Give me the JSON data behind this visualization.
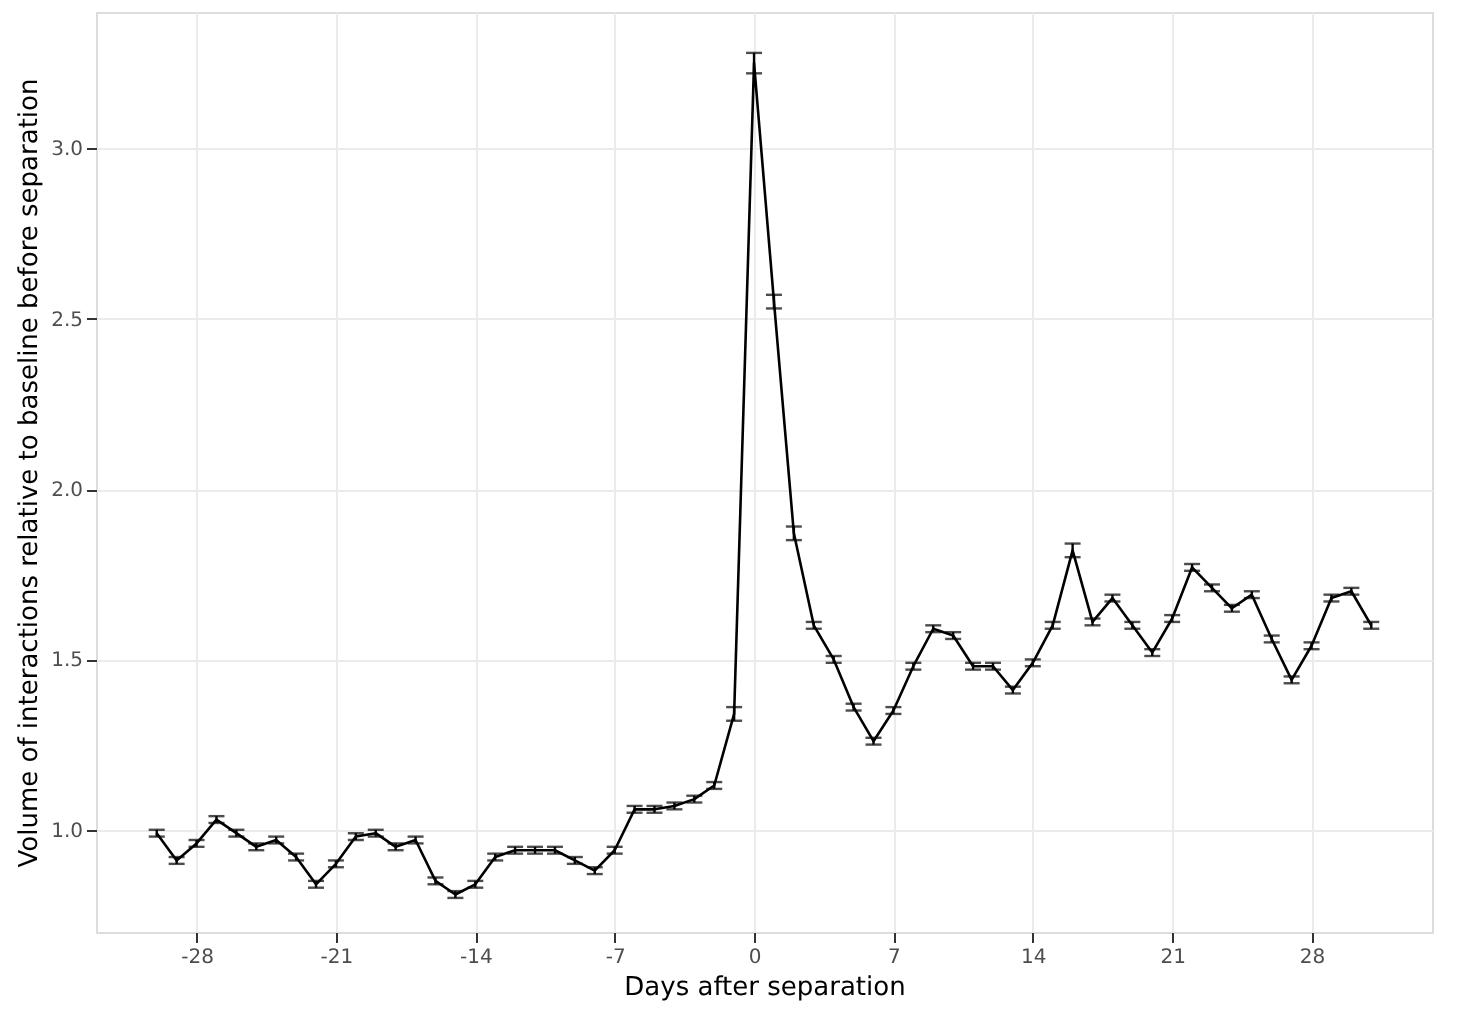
{
  "chart_data": {
    "type": "line",
    "xlabel": "Days after separation",
    "ylabel": "Volume of interactions relative to baseline before separation",
    "x": [
      -30,
      -29,
      -28,
      -27,
      -26,
      -25,
      -24,
      -23,
      -22,
      -21,
      -20,
      -19,
      -18,
      -17,
      -16,
      -15,
      -14,
      -13,
      -12,
      -11,
      -10,
      -9,
      -8,
      -7,
      -6,
      -5,
      -4,
      -3,
      -2,
      -1,
      0,
      1,
      2,
      3,
      4,
      5,
      6,
      7,
      8,
      9,
      10,
      11,
      12,
      13,
      14,
      15,
      16,
      17,
      18,
      19,
      20,
      21,
      22,
      23,
      24,
      25,
      26,
      27,
      28,
      29,
      30,
      31
    ],
    "series": [
      {
        "color": "#000000",
        "values": [
          0.99,
          0.91,
          0.96,
          1.03,
          0.99,
          0.95,
          0.97,
          0.92,
          0.84,
          0.9,
          0.98,
          0.99,
          0.95,
          0.97,
          0.85,
          0.81,
          0.84,
          0.92,
          0.94,
          0.94,
          0.94,
          0.91,
          0.88,
          0.94,
          1.06,
          1.06,
          1.07,
          1.09,
          1.13,
          1.34,
          3.25,
          2.55,
          1.87,
          1.6,
          1.5,
          1.36,
          1.26,
          1.35,
          1.48,
          1.59,
          1.57,
          1.48,
          1.48,
          1.41,
          1.49,
          1.6,
          1.82,
          1.61,
          1.68,
          1.6,
          1.52,
          1.62,
          1.77,
          1.71,
          1.65,
          1.69,
          1.56,
          1.44,
          1.54,
          1.68,
          1.7,
          1.6
        ],
        "errors": [
          0.01,
          0.01,
          0.01,
          0.01,
          0.01,
          0.01,
          0.01,
          0.01,
          0.01,
          0.01,
          0.01,
          0.01,
          0.01,
          0.01,
          0.01,
          0.01,
          0.01,
          0.01,
          0.01,
          0.01,
          0.01,
          0.01,
          0.01,
          0.01,
          0.01,
          0.01,
          0.01,
          0.01,
          0.01,
          0.02,
          0.03,
          0.02,
          0.02,
          0.01,
          0.01,
          0.01,
          0.01,
          0.01,
          0.01,
          0.01,
          0.01,
          0.01,
          0.01,
          0.01,
          0.01,
          0.01,
          0.02,
          0.01,
          0.01,
          0.01,
          0.01,
          0.01,
          0.01,
          0.01,
          0.01,
          0.01,
          0.01,
          0.01,
          0.01,
          0.01,
          0.01,
          0.01
        ]
      }
    ],
    "xlim": [
      -33.05,
      34.05
    ],
    "xticks": [
      -28,
      -21,
      -14,
      -7,
      0,
      7,
      14,
      21,
      28
    ],
    "ylim": [
      0.7,
      3.4
    ],
    "yticks": [
      {
        "value": 1.0,
        "label": "1.0"
      },
      1.5,
      {
        "value": 2.0,
        "label": "2.0"
      },
      2.5,
      {
        "value": 3.0,
        "label": "3.0"
      }
    ],
    "grid": true,
    "marker": "none",
    "line_style": "solid"
  }
}
